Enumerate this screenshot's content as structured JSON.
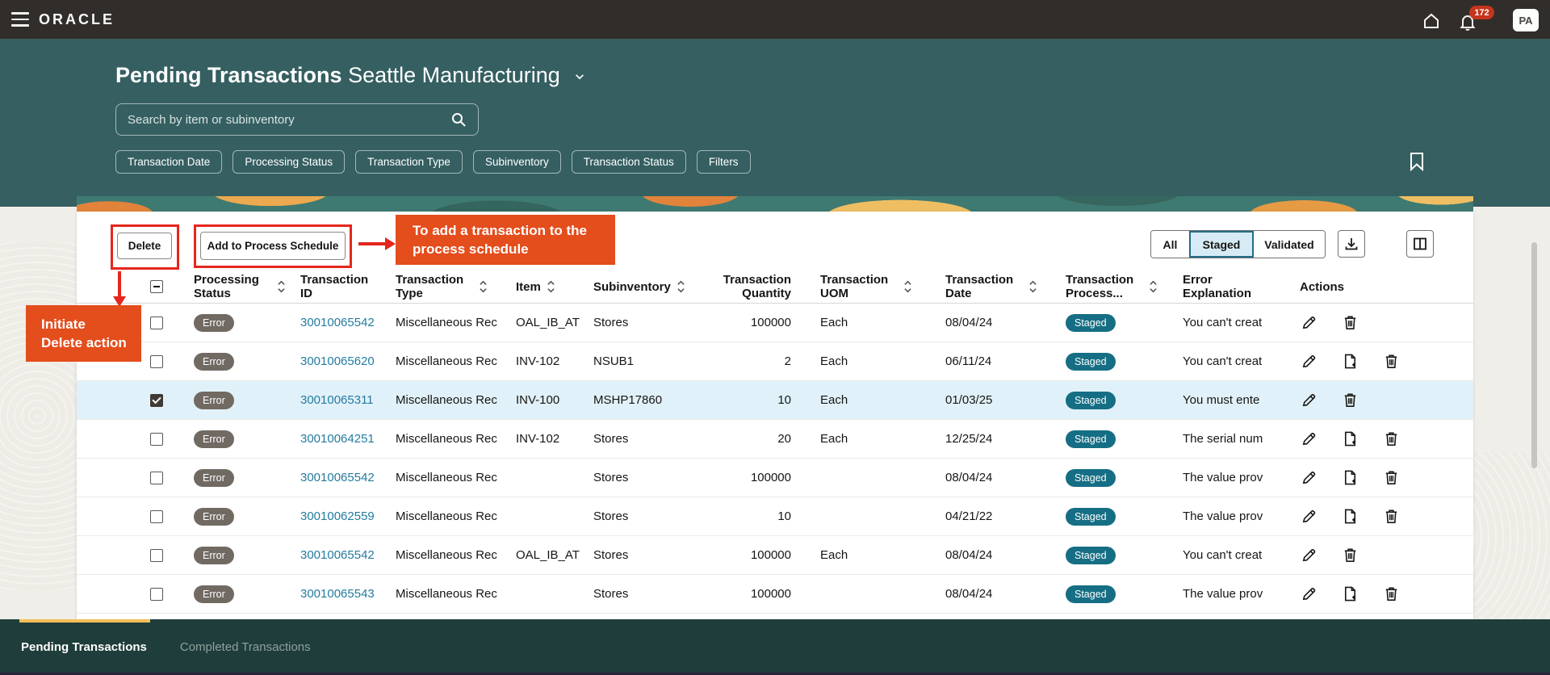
{
  "topbar": {
    "logo": "ORACLE",
    "notification_count": "172",
    "avatar_initials": "PA"
  },
  "header": {
    "title": "Pending Transactions",
    "context": "Seattle Manufacturing",
    "search_placeholder": "Search by item or subinventory",
    "filter_chips": [
      "Transaction Date",
      "Processing Status",
      "Transaction Type",
      "Subinventory",
      "Transaction Status",
      "Filters"
    ]
  },
  "toolbar": {
    "delete_label": "Delete",
    "add_label": "Add to Process Schedule",
    "segments": [
      "All",
      "Staged",
      "Validated"
    ],
    "active_segment": "Staged"
  },
  "annotations": {
    "add_callout_lines": [
      "To add a transaction to the",
      "process schedule"
    ],
    "delete_callout_lines": [
      "Initiate",
      "Delete action"
    ]
  },
  "table": {
    "columns": [
      {
        "id": "select",
        "label": "",
        "type": "checkbox",
        "sortable": false
      },
      {
        "id": "status",
        "label": "Processing Status",
        "sortable": true
      },
      {
        "id": "id",
        "label": "Transaction ID",
        "sortable": false
      },
      {
        "id": "type",
        "label": "Transaction Type",
        "sortable": true
      },
      {
        "id": "item",
        "label": "Item",
        "sortable": true
      },
      {
        "id": "subinventory",
        "label": "Subinventory",
        "sortable": true
      },
      {
        "id": "quantity",
        "label": "Transaction Quantity",
        "sortable": false,
        "align": "right"
      },
      {
        "id": "uom",
        "label": "Transaction UOM",
        "sortable": true
      },
      {
        "id": "date",
        "label": "Transaction Date",
        "sortable": true
      },
      {
        "id": "process",
        "label": "Transaction Process...",
        "sortable": true
      },
      {
        "id": "error",
        "label": "Error Explanation",
        "sortable": false
      },
      {
        "id": "actions",
        "label": "Actions",
        "sortable": false
      }
    ],
    "rows": [
      {
        "checked": false,
        "selected": false,
        "status": "Error",
        "id": "30010065542",
        "type": "Miscellaneous Rec",
        "item": "OAL_IB_AT",
        "subinventory": "Stores",
        "quantity": "100000",
        "uom": "Each",
        "date": "08/04/24",
        "process": "Staged",
        "error": "You can't creat",
        "actions": [
          "edit",
          "delete"
        ]
      },
      {
        "checked": false,
        "selected": false,
        "status": "Error",
        "id": "30010065620",
        "type": "Miscellaneous Rec",
        "item": "INV-102",
        "subinventory": "NSUB1",
        "quantity": "2",
        "uom": "Each",
        "date": "06/11/24",
        "process": "Staged",
        "error": "You can't creat",
        "actions": [
          "edit",
          "add_to_schedule",
          "delete"
        ]
      },
      {
        "checked": true,
        "selected": true,
        "status": "Error",
        "id": "30010065311",
        "type": "Miscellaneous Rec",
        "item": "INV-100",
        "subinventory": "MSHP17860",
        "quantity": "10",
        "uom": "Each",
        "date": "01/03/25",
        "process": "Staged",
        "error": "You must ente",
        "actions": [
          "edit",
          "delete"
        ]
      },
      {
        "checked": false,
        "selected": false,
        "status": "Error",
        "id": "30010064251",
        "type": "Miscellaneous Rec",
        "item": "INV-102",
        "subinventory": "Stores",
        "quantity": "20",
        "uom": "Each",
        "date": "12/25/24",
        "process": "Staged",
        "error": "The serial num",
        "actions": [
          "edit",
          "add_to_schedule",
          "delete"
        ]
      },
      {
        "checked": false,
        "selected": false,
        "status": "Error",
        "id": "30010065542",
        "type": "Miscellaneous Rec",
        "item": "",
        "subinventory": "Stores",
        "quantity": "100000",
        "uom": "",
        "date": "08/04/24",
        "process": "Staged",
        "error": "The value prov",
        "actions": [
          "edit",
          "add_to_schedule",
          "delete"
        ]
      },
      {
        "checked": false,
        "selected": false,
        "status": "Error",
        "id": "30010062559",
        "type": "Miscellaneous Rec",
        "item": "",
        "subinventory": "Stores",
        "quantity": "10",
        "uom": "",
        "date": "04/21/22",
        "process": "Staged",
        "error": "The value prov",
        "actions": [
          "edit",
          "add_to_schedule",
          "delete"
        ]
      },
      {
        "checked": false,
        "selected": false,
        "status": "Error",
        "id": "30010065542",
        "type": "Miscellaneous Rec",
        "item": "OAL_IB_AT",
        "subinventory": "Stores",
        "quantity": "100000",
        "uom": "Each",
        "date": "08/04/24",
        "process": "Staged",
        "error": "You can't creat",
        "actions": [
          "edit",
          "delete"
        ]
      },
      {
        "checked": false,
        "selected": false,
        "status": "Error",
        "id": "30010065543",
        "type": "Miscellaneous Rec",
        "item": "",
        "subinventory": "Stores",
        "quantity": "100000",
        "uom": "",
        "date": "08/04/24",
        "process": "Staged",
        "error": "The value prov",
        "actions": [
          "edit",
          "add_to_schedule",
          "delete"
        ]
      }
    ]
  },
  "footer": {
    "tabs": [
      "Pending Transactions",
      "Completed Transactions"
    ],
    "active_tab": "Pending Transactions"
  },
  "icons": {
    "hamburger": "menu",
    "home": "house-outline",
    "notifications": "bell",
    "search": "magnifier",
    "bookmark": "bookmark-outline",
    "download": "tray-down-arrow",
    "columns": "split-panel",
    "sort": "up-down-chevrons",
    "edit": "pencil",
    "add_to_schedule": "document-plus",
    "delete": "trash-can",
    "context_switcher": "chevron-down"
  },
  "colors": {
    "topbar_bg": "#312D2A",
    "hero_bg": "#355F61",
    "footer_bg": "#1F3D3A",
    "page_bg": "#F0EEE8",
    "annotation_red": "#E5261C",
    "callout_bg": "#E44D1C",
    "notification_badge_bg": "#C5351C",
    "error_badge_bg": "#716A63",
    "staged_badge_bg": "#156E84",
    "link_color": "#237BA0",
    "selected_row_bg": "#E1F1F9",
    "segment_selected_bg": "#D6EBF5",
    "active_tab_indicator": "#F3BE58"
  }
}
